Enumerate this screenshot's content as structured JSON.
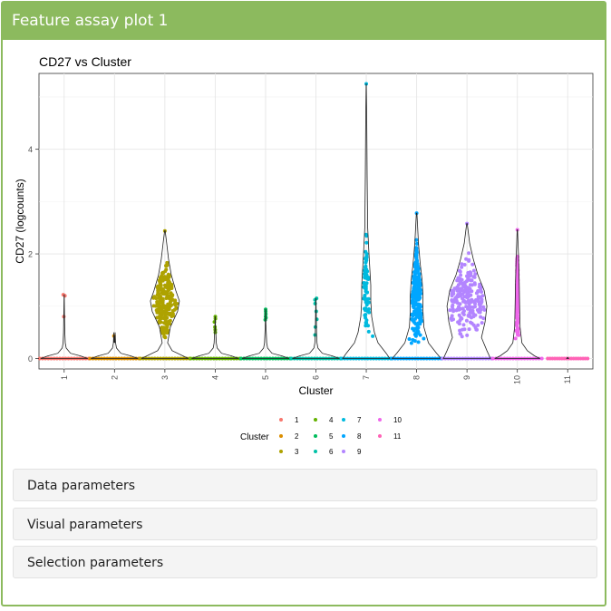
{
  "panel": {
    "title": "Feature assay plot 1"
  },
  "chart_data": {
    "type": "violin",
    "title": "CD27 vs Cluster",
    "xlabel": "Cluster",
    "ylabel": "CD27 (logcounts)",
    "ylim": [
      0,
      5.3
    ],
    "yticks": [
      "0",
      "2",
      "4"
    ],
    "categories": [
      "1",
      "2",
      "3",
      "4",
      "5",
      "6",
      "7",
      "8",
      "9",
      "10",
      "11"
    ],
    "colors": [
      "#F8766D",
      "#DB8E00",
      "#AEA200",
      "#64B200",
      "#00BD5C",
      "#00C1A7",
      "#00BADE",
      "#00A6FF",
      "#B385FF",
      "#EF67EB",
      "#FF63B6"
    ],
    "max_values": [
      1.22,
      0.43,
      2.44,
      0.8,
      0.94,
      1.15,
      5.25,
      2.78,
      2.58,
      2.46,
      0.0
    ],
    "legend": {
      "title": "Cluster",
      "position": "bottom",
      "entries": [
        "1",
        "2",
        "3",
        "4",
        "5",
        "6",
        "7",
        "8",
        "9",
        "10",
        "11"
      ]
    },
    "grid": true
  },
  "sections": [
    {
      "label": "Data parameters"
    },
    {
      "label": "Visual parameters"
    },
    {
      "label": "Selection parameters"
    }
  ]
}
